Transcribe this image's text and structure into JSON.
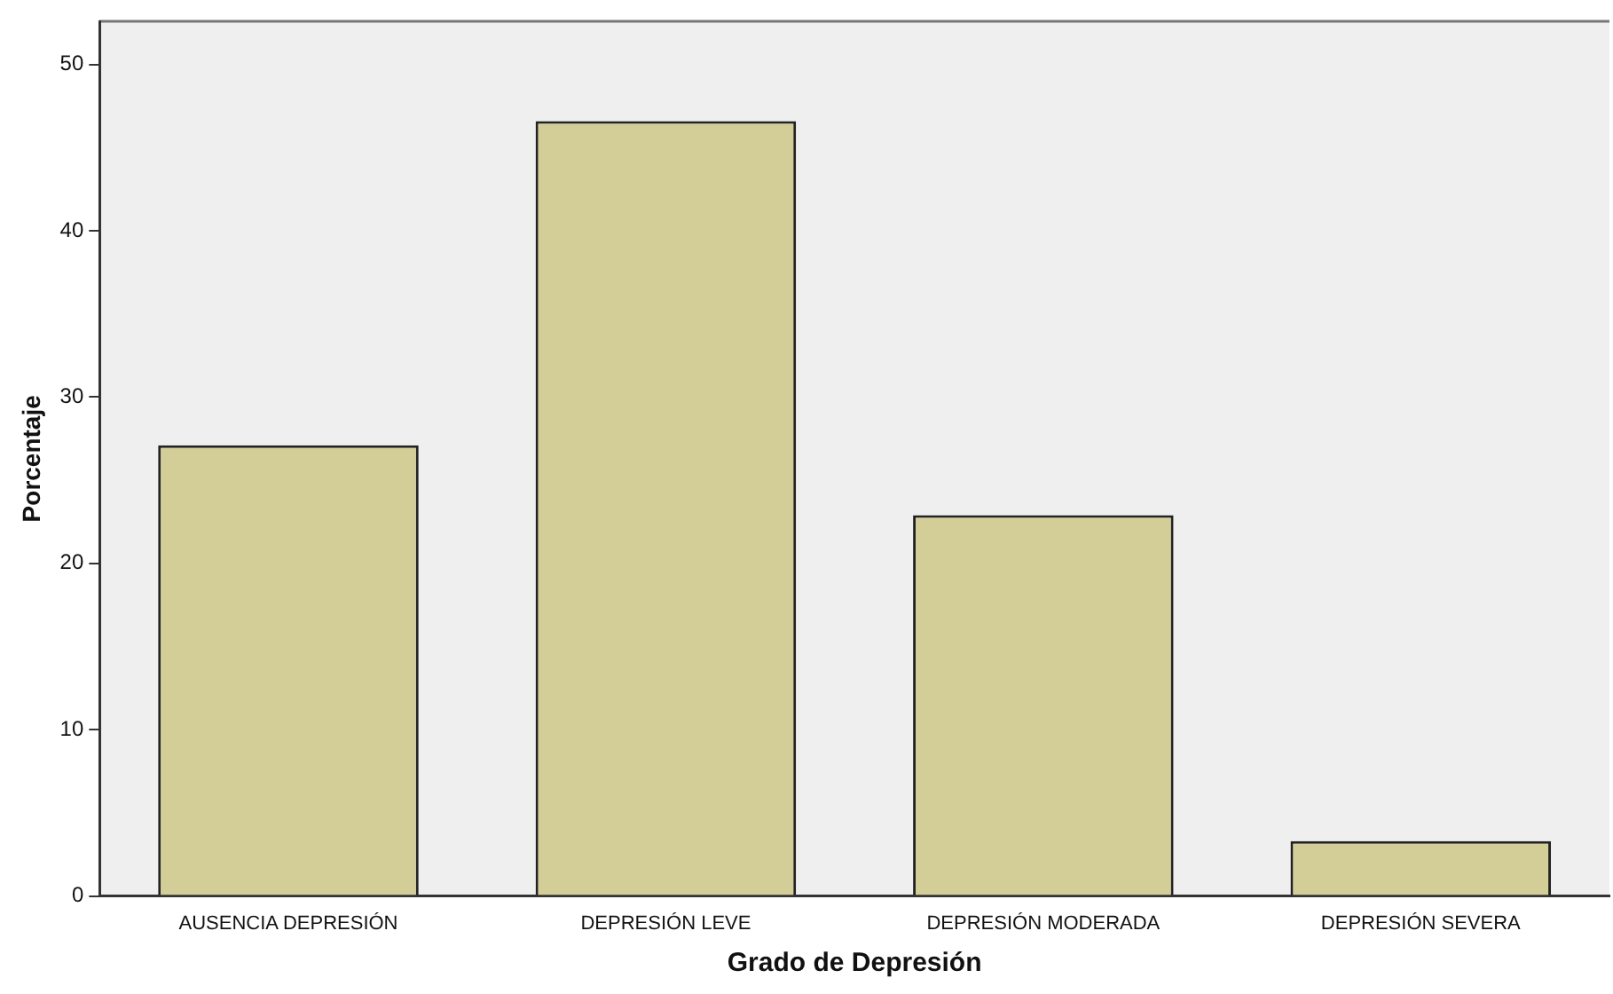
{
  "chart_data": {
    "type": "bar",
    "xlabel": "Grado de Depresión",
    "ylabel": "Porcentaje",
    "categories": [
      "AUSENCIA DEPRESIÓN",
      "DEPRESIÓN LEVE",
      "DEPRESIÓN MODERADA",
      "DEPRESIÓN SEVERA"
    ],
    "values": [
      27.1,
      46.6,
      22.9,
      3.3
    ],
    "color": "#d3cd97",
    "ylim": [
      0,
      52.6
    ],
    "yticks": [
      0,
      10,
      20,
      30,
      40,
      50
    ],
    "grid": false,
    "legend": false
  }
}
